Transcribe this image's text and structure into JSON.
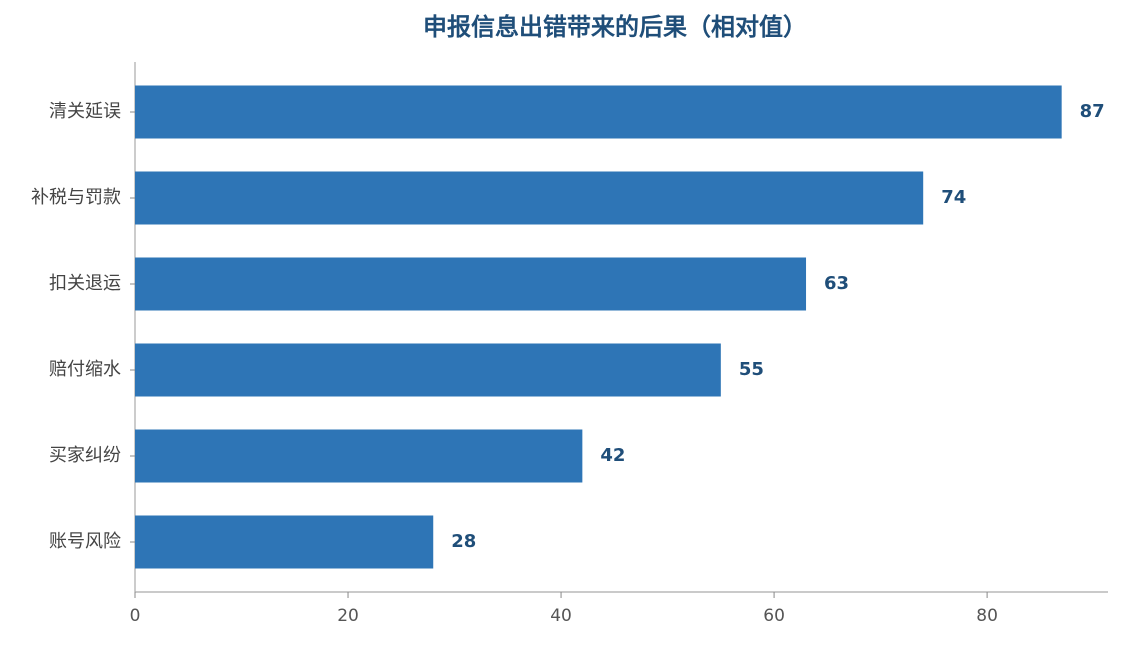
{
  "chart_data": {
    "type": "barh",
    "title": "申报信息出错带来的后果（相对值）",
    "categories": [
      "清关延误",
      "补税与罚款",
      "扣关退运",
      "赔付缩水",
      "买家纠纷",
      "账号风险"
    ],
    "values": [
      87,
      74,
      63,
      55,
      42,
      28
    ],
    "color": "#2e75b6",
    "xlim": [
      0,
      91.35
    ],
    "xticks": [
      0,
      20,
      40,
      60,
      80
    ],
    "grid": false
  }
}
